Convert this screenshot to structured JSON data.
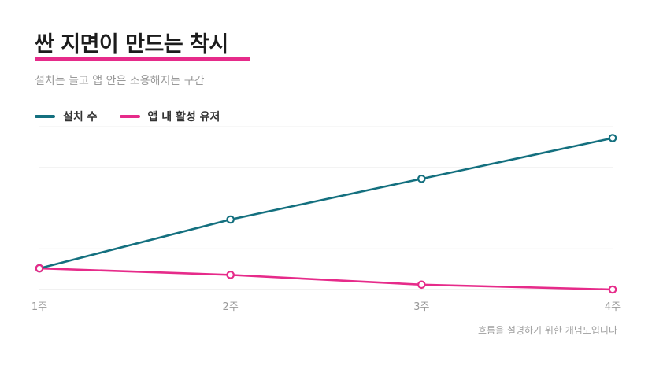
{
  "chart_data": {
    "type": "line",
    "title": "싼 지면이 만드는 착시",
    "subtitle": "설치는 늘고 앱 안은 조용해지는 구간",
    "footnote": "흐름을 설명하기 위한 개념도입니다",
    "categories": [
      "1주",
      "2주",
      "3주",
      "4주"
    ],
    "series": [
      {
        "name": "설치 수",
        "color": "#14707f",
        "values": [
          27,
          57,
          82,
          107
        ]
      },
      {
        "name": "앱 내 활성 유저",
        "color": "#e62b8a",
        "values": [
          27,
          23,
          17,
          14
        ]
      }
    ],
    "ylim": [
      14,
      114
    ],
    "grid": true,
    "legend_position": "top-left",
    "xlabel": "",
    "ylabel": ""
  }
}
